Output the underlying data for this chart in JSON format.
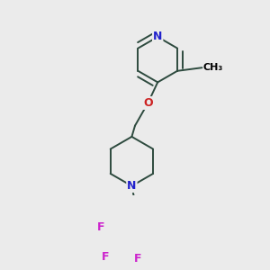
{
  "background_color": "#ebebeb",
  "atom_colors": {
    "C": "#000000",
    "N": "#2222cc",
    "O": "#cc2222",
    "F": "#cc22cc"
  },
  "bond_color": "#2d4a3e",
  "bond_width": 1.4,
  "fig_w": 3.0,
  "fig_h": 3.0,
  "dpi": 100
}
